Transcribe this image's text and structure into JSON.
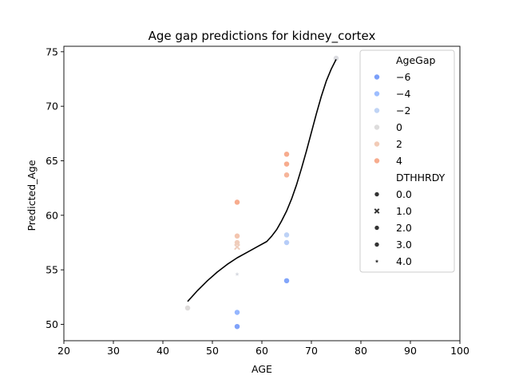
{
  "chart_data": {
    "type": "scatter",
    "title": "Age gap predictions for kidney_cortex",
    "xlabel": "AGE",
    "ylabel": "Predicted_Age",
    "xlim": [
      20,
      100
    ],
    "ylim": [
      48.5,
      75.5
    ],
    "x_ticks": [
      20,
      30,
      40,
      50,
      60,
      70,
      80,
      90,
      100
    ],
    "y_ticks": [
      50,
      55,
      60,
      65,
      70,
      75
    ],
    "x_tick_labels": [
      "20",
      "30",
      "40",
      "50",
      "60",
      "70",
      "80",
      "90",
      "100"
    ],
    "y_tick_labels": [
      "50",
      "55",
      "60",
      "65",
      "70",
      "75"
    ],
    "grid": false,
    "legend_position": "top-right",
    "hue_legend": {
      "title": "AgeGap",
      "entries": [
        {
          "label": "−6",
          "value": -6,
          "color": "#7b9ff9"
        },
        {
          "label": "−4",
          "value": -4,
          "color": "#9ebeff"
        },
        {
          "label": "−2",
          "value": -2,
          "color": "#c0d4f5"
        },
        {
          "label": "0",
          "value": 0,
          "color": "#dddcdc"
        },
        {
          "label": "2",
          "value": 2,
          "color": "#f2cbb7"
        },
        {
          "label": "4",
          "value": 4,
          "color": "#f7ac8e"
        }
      ]
    },
    "style_legend": {
      "title": "DTHHRDY",
      "entries": [
        {
          "label": "0.0",
          "marker": "circle"
        },
        {
          "label": "1.0",
          "marker": "x"
        },
        {
          "label": "2.0",
          "marker": "circle"
        },
        {
          "label": "3.0",
          "marker": "circle"
        },
        {
          "label": "4.0",
          "marker": "star"
        }
      ]
    },
    "points": [
      {
        "x": 45,
        "y": 51.5,
        "age_gap": 0.1,
        "dthhrdy": 0.0
      },
      {
        "x": 55,
        "y": 61.2,
        "age_gap": 4.5,
        "dthhrdy": 0.0
      },
      {
        "x": 55,
        "y": 58.1,
        "age_gap": 2.4,
        "dthhrdy": 0.0
      },
      {
        "x": 55,
        "y": 57.5,
        "age_gap": 1.8,
        "dthhrdy": 0.0
      },
      {
        "x": 55,
        "y": 57.1,
        "age_gap": 1.6,
        "dthhrdy": 1.0
      },
      {
        "x": 55,
        "y": 54.6,
        "age_gap": -0.4,
        "dthhrdy": 4.0
      },
      {
        "x": 55,
        "y": 51.1,
        "age_gap": -4.5,
        "dthhrdy": 0.0
      },
      {
        "x": 55,
        "y": 49.8,
        "age_gap": -5.8,
        "dthhrdy": 0.0
      },
      {
        "x": 65,
        "y": 65.6,
        "age_gap": 4.6,
        "dthhrdy": 0.0
      },
      {
        "x": 65,
        "y": 64.7,
        "age_gap": 4.0,
        "dthhrdy": 0.0
      },
      {
        "x": 65,
        "y": 63.7,
        "age_gap": 3.4,
        "dthhrdy": 0.0
      },
      {
        "x": 65,
        "y": 58.2,
        "age_gap": -2.2,
        "dthhrdy": 0.0
      },
      {
        "x": 65,
        "y": 57.5,
        "age_gap": -2.6,
        "dthhrdy": 0.0
      },
      {
        "x": 65,
        "y": 54.0,
        "age_gap": -5.6,
        "dthhrdy": 0.0
      },
      {
        "x": 75,
        "y": 74.4,
        "age_gap": -0.2,
        "dthhrdy": 0.0
      }
    ],
    "trend_line": {
      "color": "#000000",
      "x": [
        45,
        47,
        49,
        51,
        53,
        55,
        57,
        59,
        61,
        62,
        63,
        64,
        65,
        66,
        67,
        68,
        69,
        70,
        71,
        72,
        73,
        74,
        75
      ],
      "y": [
        52.1,
        53.1,
        54.0,
        54.8,
        55.5,
        56.1,
        56.6,
        57.1,
        57.6,
        58.1,
        58.7,
        59.5,
        60.4,
        61.5,
        62.8,
        64.3,
        65.9,
        67.6,
        69.3,
        70.9,
        72.3,
        73.4,
        74.3
      ]
    }
  }
}
